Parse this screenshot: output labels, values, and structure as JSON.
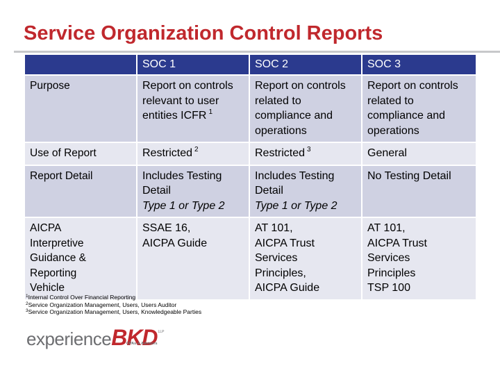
{
  "slide": {
    "title": "Service Organization Control Reports"
  },
  "table": {
    "header": [
      "",
      "SOC 1",
      "SOC 2",
      "SOC 3"
    ],
    "rows": [
      {
        "label": [
          "Purpose"
        ],
        "cells": [
          {
            "lines": [
              "Report on controls",
              "relevant to user",
              "entities ICFR"
            ],
            "sup": "1"
          },
          {
            "lines": [
              "Report on controls",
              "related to",
              "compliance and",
              "operations"
            ]
          },
          {
            "lines": [
              "Report on controls",
              "related to",
              "compliance and",
              "operations"
            ]
          }
        ]
      },
      {
        "label": [
          "Use of Report"
        ],
        "cells": [
          {
            "lines": [
              "Restricted"
            ],
            "sup": "2"
          },
          {
            "lines": [
              "Restricted"
            ],
            "sup": "3"
          },
          {
            "lines": [
              "General"
            ]
          }
        ]
      },
      {
        "label": [
          "Report Detail"
        ],
        "cells": [
          {
            "lines": [
              "Includes Testing",
              "Detail"
            ],
            "italic": "Type 1 or Type 2"
          },
          {
            "lines": [
              "Includes Testing",
              "Detail"
            ],
            "italic": "Type 1 or Type 2"
          },
          {
            "lines": [
              "No Testing Detail"
            ]
          }
        ]
      },
      {
        "label": [
          "AICPA",
          "Interpretive",
          "Guidance &",
          "Reporting",
          "Vehicle"
        ],
        "cells": [
          {
            "lines": [
              "SSAE 16,",
              "AICPA Guide"
            ]
          },
          {
            "lines": [
              "AT 101,",
              "AICPA Trust",
              "Services",
              "Principles,",
              "AICPA Guide"
            ]
          },
          {
            "lines": [
              "AT 101,",
              "AICPA Trust",
              "Services",
              "Principles",
              "TSP 100"
            ]
          }
        ]
      }
    ]
  },
  "footnotes": [
    {
      "num": "1",
      "text": "Internal Control Over Financial Reporting"
    },
    {
      "num": "2",
      "text": "Service Organization Management, Users, Users Auditor"
    },
    {
      "num": "3",
      "text": "Service Organization Management, Users, Knowledgeable Parties"
    }
  ],
  "logo": {
    "word": "experience",
    "brand": "BKD",
    "tagline": "CPAs & Advisors",
    "suffix": "LLP",
    "brand_color": "#c0282d",
    "gray_color": "#6d6e71"
  },
  "colors": {
    "title": "#c0282d",
    "header_bg": "#2b3a8e",
    "row_dark": "#cfd1e2",
    "row_light": "#e6e7f0"
  }
}
